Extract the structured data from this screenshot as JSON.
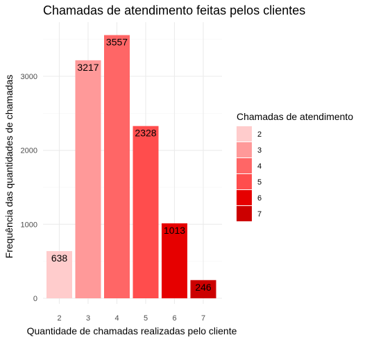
{
  "chart_data": {
    "type": "bar",
    "title": "Chamadas de atendimento feitas pelos clientes",
    "xlabel": "Quantidade de chamadas realizadas pelo cliente",
    "ylabel": "Frequência das quantidades de chamadas",
    "categories": [
      "2",
      "3",
      "4",
      "5",
      "6",
      "7"
    ],
    "values": [
      638,
      3217,
      3557,
      2328,
      1013,
      246
    ],
    "data_labels": [
      "638",
      "3217",
      "3557",
      "2328",
      "1013",
      "246"
    ],
    "colors": [
      "#ffcccc",
      "#ff9999",
      "#ff6666",
      "#ff4d4d",
      "#e60000",
      "#cc0000"
    ],
    "ylim": [
      0,
      3750
    ],
    "yticks": [
      0,
      1000,
      2000,
      3000
    ],
    "ytick_labels": [
      "0",
      "1000",
      "2000",
      "3000"
    ],
    "grid": true,
    "legend": {
      "title": "Chamadas de atendimento",
      "position": "right",
      "entries": [
        "2",
        "3",
        "4",
        "5",
        "6",
        "7"
      ]
    }
  }
}
